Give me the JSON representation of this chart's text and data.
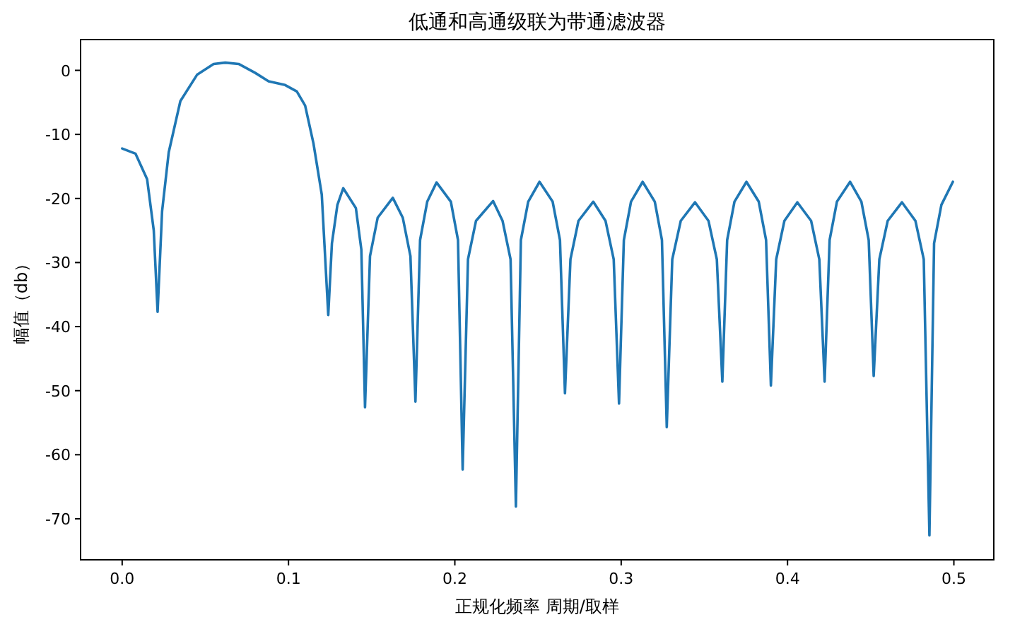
{
  "chart_data": {
    "type": "line",
    "title": "低通和高通级联为带通滤波器",
    "xlabel": "正规化频率 周期/取样",
    "ylabel": "幅值（db）",
    "xlim": [
      -0.025,
      0.524
    ],
    "ylim": [
      -76.4,
      4.8
    ],
    "xticks": [
      {
        "value": 0,
        "label": "0.0"
      },
      {
        "value": 0.1,
        "label": "0.1"
      },
      {
        "value": 0.2,
        "label": "0.2"
      },
      {
        "value": 0.3,
        "label": "0.3"
      },
      {
        "value": 0.4,
        "label": "0.4"
      },
      {
        "value": 0.5,
        "label": "0.5"
      }
    ],
    "yticks": [
      0,
      -10,
      -20,
      -30,
      -40,
      -50,
      -60,
      -70
    ],
    "grid": false,
    "series": [
      {
        "color": "#1f77b4",
        "x": [
          0,
          0.008,
          0.015,
          0.019,
          0.0213,
          0.024,
          0.028,
          0.035,
          0.045,
          0.055,
          0.062,
          0.07,
          0.08,
          0.088,
          0.098,
          0.105,
          0.11,
          0.115,
          0.12,
          0.1239,
          0.1261,
          0.1294,
          0.1329,
          0.1405,
          0.1438,
          0.146,
          0.149,
          0.1536,
          0.1627,
          0.1687,
          0.1733,
          0.1763,
          0.1791,
          0.1834,
          0.189,
          0.1976,
          0.2019,
          0.2047,
          0.2079,
          0.2127,
          0.223,
          0.2287,
          0.2335,
          0.2367,
          0.2397,
          0.2441,
          0.2509,
          0.2588,
          0.2632,
          0.2662,
          0.2695,
          0.2743,
          0.2832,
          0.2906,
          0.2955,
          0.2987,
          0.3016,
          0.3059,
          0.3129,
          0.3202,
          0.3245,
          0.3274,
          0.3307,
          0.3358,
          0.3444,
          0.3525,
          0.3575,
          0.3608,
          0.3637,
          0.3681,
          0.3753,
          0.3827,
          0.3871,
          0.39,
          0.3932,
          0.3981,
          0.4059,
          0.4142,
          0.4191,
          0.4223,
          0.4253,
          0.4297,
          0.4376,
          0.4444,
          0.4488,
          0.4518,
          0.4552,
          0.4602,
          0.4688,
          0.4769,
          0.4819,
          0.4853,
          0.4881,
          0.4925,
          0.4994
        ],
        "values": [
          -12.2,
          -13,
          -17,
          -25,
          -37.7,
          -22,
          -12.8,
          -4.8,
          -0.7,
          1,
          1.2,
          1,
          -0.4,
          -1.7,
          -2.3,
          -3.3,
          -5.5,
          -11.4,
          -19.4,
          -38.2,
          -27,
          -21,
          -18.4,
          -21.5,
          -28,
          -52.6,
          -29,
          -23,
          -19.9,
          -23,
          -29,
          -51.7,
          -26.5,
          -20.5,
          -17.5,
          -20.5,
          -26.5,
          -62.3,
          -29.5,
          -23.5,
          -20.4,
          -23.5,
          -29.5,
          -68.1,
          -26.5,
          -20.5,
          -17.4,
          -20.5,
          -26.5,
          -50.4,
          -29.5,
          -23.5,
          -20.5,
          -23.5,
          -29.5,
          -52,
          -26.5,
          -20.5,
          -17.4,
          -20.5,
          -26.5,
          -55.7,
          -29.5,
          -23.5,
          -20.6,
          -23.5,
          -29.5,
          -48.6,
          -26.5,
          -20.5,
          -17.4,
          -20.5,
          -26.5,
          -49.2,
          -29.5,
          -23.5,
          -20.6,
          -23.5,
          -29.5,
          -48.6,
          -26.5,
          -20.5,
          -17.4,
          -20.5,
          -26.5,
          -47.7,
          -29.5,
          -23.5,
          -20.6,
          -23.5,
          -29.5,
          -72.6,
          -27,
          -21,
          -17.4
        ]
      }
    ]
  }
}
